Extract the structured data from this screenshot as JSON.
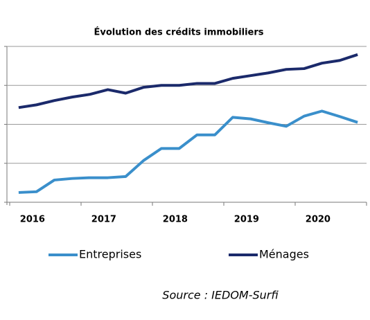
{
  "chart_data": {
    "type": "line",
    "title": "Évolution des crédits immobiliers",
    "categories": [
      "2016",
      null,
      null,
      null,
      "2017",
      null,
      null,
      null,
      "2018",
      null,
      null,
      null,
      "2019",
      null,
      null,
      null,
      "2020",
      null,
      null,
      null
    ],
    "series": [
      {
        "name": "Entreprises",
        "color": "#3a8fcb",
        "values": [
          0.25,
          0.27,
          0.57,
          0.61,
          0.63,
          0.63,
          0.66,
          1.07,
          1.38,
          1.38,
          1.73,
          1.73,
          2.18,
          2.14,
          2.04,
          1.95,
          2.21,
          2.34,
          2.2,
          2.05
        ]
      },
      {
        "name": "Ménages",
        "color": "#1b2a6b",
        "values": [
          2.43,
          2.5,
          2.61,
          2.7,
          2.77,
          2.89,
          2.8,
          2.95,
          3.0,
          3.0,
          3.05,
          3.05,
          3.18,
          3.25,
          3.32,
          3.41,
          3.43,
          3.57,
          3.64,
          3.79
        ]
      }
    ],
    "ylim": [
      0,
      4
    ],
    "yticks": [
      0,
      1,
      2,
      3,
      4
    ],
    "grid": true,
    "annotation": "Source : IEDOM-Surfi"
  }
}
